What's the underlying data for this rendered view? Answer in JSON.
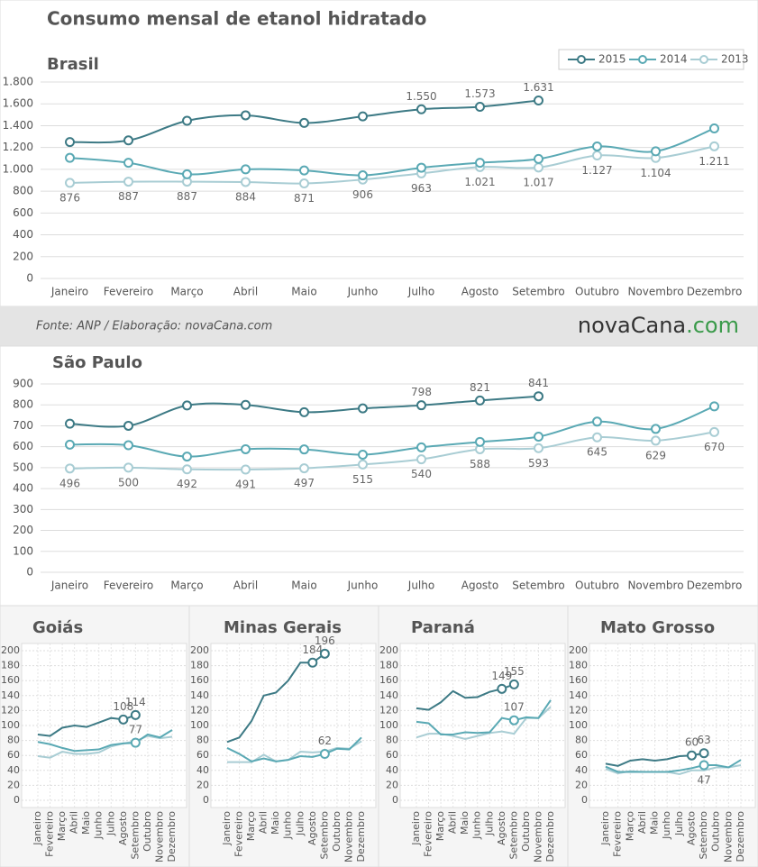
{
  "title": "Consumo mensal de etanol hidratado",
  "source": "Fonte: ANP / Elaboração: novaCana.com",
  "logo": {
    "main": "novaCana",
    "suffix": ".com"
  },
  "chart_data": [
    {
      "type": "line",
      "title": "Brasil",
      "markers": true,
      "legend": "top-right",
      "grid": true,
      "categories": [
        "Janeiro",
        "Fevereiro",
        "Março",
        "Abril",
        "Maio",
        "Junho",
        "Julho",
        "Agosto",
        "Setembro",
        "Outubro",
        "Novembro",
        "Dezembro"
      ],
      "ylim": [
        0,
        1800
      ],
      "yticks": [
        0,
        200,
        400,
        600,
        800,
        {
          "value": 1000,
          "label": "1.000"
        },
        {
          "value": 1200,
          "label": "1.200"
        },
        {
          "value": 1400,
          "label": "1.400"
        },
        {
          "value": 1600,
          "label": "1.600"
        },
        {
          "value": 1800,
          "label": "1.800"
        }
      ],
      "series": [
        {
          "name": "2015",
          "color": "#3d7a85",
          "values": [
            1250,
            1265,
            1445,
            1495,
            1425,
            1485,
            1550,
            1573,
            1631,
            null,
            null,
            null
          ],
          "value_labels": [
            null,
            null,
            null,
            null,
            null,
            null,
            "1.550",
            "1.573",
            "1.631",
            null,
            null,
            null
          ]
        },
        {
          "name": "2014",
          "color": "#5aa9b4",
          "values": [
            1105,
            1060,
            955,
            1000,
            990,
            945,
            1015,
            1060,
            1095,
            1210,
            1165,
            1375
          ]
        },
        {
          "name": "2013",
          "color": "#a9cdd4",
          "values": [
            876,
            887,
            887,
            884,
            871,
            906,
            963,
            1021,
            1017,
            1127,
            1104,
            1211
          ],
          "value_labels": [
            "876",
            "887",
            "887",
            "884",
            "871",
            "906",
            "963",
            "1.021",
            "1.017",
            "1.127",
            "1.104",
            "1.211"
          ]
        }
      ]
    },
    {
      "type": "line",
      "title": "São Paulo",
      "markers": true,
      "grid": true,
      "categories": [
        "Janeiro",
        "Fevereiro",
        "Março",
        "Abril",
        "Maio",
        "Junho",
        "Julho",
        "Agosto",
        "Setembro",
        "Outubro",
        "Novembro",
        "Dezembro"
      ],
      "ylim": [
        0,
        900
      ],
      "yticks": [
        0,
        100,
        200,
        300,
        400,
        500,
        600,
        700,
        800,
        900
      ],
      "series": [
        {
          "name": "2015",
          "color": "#3d7a85",
          "values": [
            710,
            700,
            797,
            800,
            765,
            783,
            798,
            821,
            841,
            null,
            null,
            null
          ],
          "value_labels": [
            null,
            null,
            null,
            null,
            null,
            null,
            "798",
            "821",
            "841",
            null,
            null,
            null
          ]
        },
        {
          "name": "2014",
          "color": "#5aa9b4",
          "values": [
            610,
            607,
            553,
            588,
            587,
            562,
            597,
            623,
            648,
            720,
            685,
            793
          ]
        },
        {
          "name": "2013",
          "color": "#a9cdd4",
          "values": [
            496,
            500,
            492,
            491,
            497,
            515,
            540,
            588,
            593,
            645,
            629,
            670
          ],
          "value_labels": [
            "496",
            "500",
            "492",
            "491",
            "497",
            "515",
            "540",
            "588",
            "593",
            "645",
            "629",
            "670"
          ]
        }
      ]
    },
    {
      "type": "line",
      "title": "Goiás",
      "markers": false,
      "grid": true,
      "categories": [
        "Janeiro",
        "Fevereiro",
        "Março",
        "Abril",
        "Maio",
        "Junho",
        "Julho",
        "Agosto",
        "Setembro",
        "Outubro",
        "Novembro",
        "Dezembro"
      ],
      "ylim": [
        0,
        200
      ],
      "yticks": [
        0,
        20,
        40,
        60,
        80,
        100,
        120,
        140,
        160,
        180,
        200
      ],
      "series": [
        {
          "name": "2015",
          "color": "#3d7a85",
          "values": [
            88,
            86,
            97,
            100,
            98,
            104,
            110,
            108,
            114,
            null,
            null,
            null
          ],
          "value_labels": [
            null,
            null,
            null,
            null,
            null,
            null,
            null,
            "108",
            "114",
            null,
            null,
            null
          ]
        },
        {
          "name": "2014",
          "color": "#5aa9b4",
          "values": [
            78,
            75,
            70,
            66,
            67,
            68,
            74,
            76,
            77,
            88,
            84,
            94
          ],
          "value_labels": [
            null,
            null,
            null,
            null,
            null,
            null,
            null,
            null,
            "77",
            null,
            null,
            null
          ]
        },
        {
          "name": "2013",
          "color": "#a9cdd4",
          "values": [
            59,
            57,
            65,
            62,
            62,
            64,
            72,
            76,
            79,
            86,
            83,
            85
          ]
        }
      ]
    },
    {
      "type": "line",
      "title": "Minas Gerais",
      "markers": false,
      "grid": true,
      "categories": [
        "Janeiro",
        "Fevereiro",
        "Março",
        "Abril",
        "Maio",
        "Junho",
        "Julho",
        "Agosto",
        "Setembro",
        "Outubro",
        "Novembro",
        "Dezembro"
      ],
      "ylim": [
        0,
        200
      ],
      "yticks": [
        0,
        20,
        40,
        60,
        80,
        100,
        120,
        140,
        160,
        180,
        200
      ],
      "series": [
        {
          "name": "2015",
          "color": "#3d7a85",
          "values": [
            78,
            84,
            106,
            140,
            144,
            160,
            184,
            184,
            196,
            null,
            null,
            null
          ],
          "value_labels": [
            null,
            null,
            null,
            null,
            null,
            null,
            null,
            "184",
            "196",
            null,
            null,
            null
          ]
        },
        {
          "name": "2014",
          "color": "#5aa9b4",
          "values": [
            70,
            62,
            52,
            56,
            52,
            54,
            59,
            58,
            62,
            69,
            68,
            84
          ],
          "value_labels": [
            null,
            null,
            null,
            null,
            null,
            null,
            null,
            null,
            "62",
            null,
            null,
            null
          ]
        },
        {
          "name": "2013",
          "color": "#a9cdd4",
          "values": [
            51,
            51,
            51,
            61,
            52,
            54,
            65,
            64,
            65,
            70,
            69,
            79
          ]
        }
      ]
    },
    {
      "type": "line",
      "title": "Paraná",
      "markers": false,
      "grid": true,
      "categories": [
        "Janeiro",
        "Fevereiro",
        "Março",
        "Abril",
        "Maio",
        "Junho",
        "Julho",
        "Agosto",
        "Setembro",
        "Outubro",
        "Novembro",
        "Dezembro"
      ],
      "ylim": [
        0,
        200
      ],
      "yticks": [
        0,
        20,
        40,
        60,
        80,
        100,
        120,
        140,
        160,
        180,
        200
      ],
      "series": [
        {
          "name": "2015",
          "color": "#3d7a85",
          "values": [
            123,
            121,
            131,
            146,
            137,
            138,
            145,
            149,
            155,
            null,
            null,
            null
          ],
          "value_labels": [
            null,
            null,
            null,
            null,
            null,
            null,
            null,
            "149",
            "155",
            null,
            null,
            null
          ]
        },
        {
          "name": "2014",
          "color": "#5aa9b4",
          "values": [
            105,
            103,
            88,
            88,
            91,
            90,
            91,
            110,
            107,
            111,
            110,
            134
          ],
          "value_labels": [
            null,
            null,
            null,
            null,
            null,
            null,
            null,
            null,
            "107",
            null,
            null,
            null
          ]
        },
        {
          "name": "2013",
          "color": "#a9cdd4",
          "values": [
            84,
            89,
            89,
            86,
            82,
            86,
            90,
            92,
            89,
            110,
            110,
            125
          ]
        }
      ]
    },
    {
      "type": "line",
      "title": "Mato Grosso",
      "markers": false,
      "grid": true,
      "categories": [
        "Janeiro",
        "Fevereiro",
        "Março",
        "Abril",
        "Maio",
        "Junho",
        "Julho",
        "Agosto",
        "Setembro",
        "Outubro",
        "Novembro",
        "Dezembro"
      ],
      "ylim": [
        0,
        200
      ],
      "yticks": [
        0,
        20,
        40,
        60,
        80,
        100,
        120,
        140,
        160,
        180,
        200
      ],
      "series": [
        {
          "name": "2015",
          "color": "#3d7a85",
          "values": [
            49,
            46,
            53,
            55,
            53,
            55,
            59,
            60,
            63,
            null,
            null,
            null
          ],
          "value_labels": [
            null,
            null,
            null,
            null,
            null,
            null,
            null,
            "60",
            "63",
            null,
            null,
            null
          ]
        },
        {
          "name": "2014",
          "color": "#5aa9b4",
          "values": [
            45,
            38,
            38,
            38,
            38,
            38,
            40,
            43,
            47,
            47,
            44,
            54
          ],
          "value_labels": [
            null,
            null,
            null,
            null,
            null,
            null,
            null,
            null,
            "47",
            null,
            null,
            null
          ]
        },
        {
          "name": "2013",
          "color": "#a9cdd4",
          "values": [
            42,
            36,
            39,
            38,
            38,
            38,
            35,
            40,
            40,
            44,
            44,
            47
          ]
        }
      ]
    }
  ]
}
